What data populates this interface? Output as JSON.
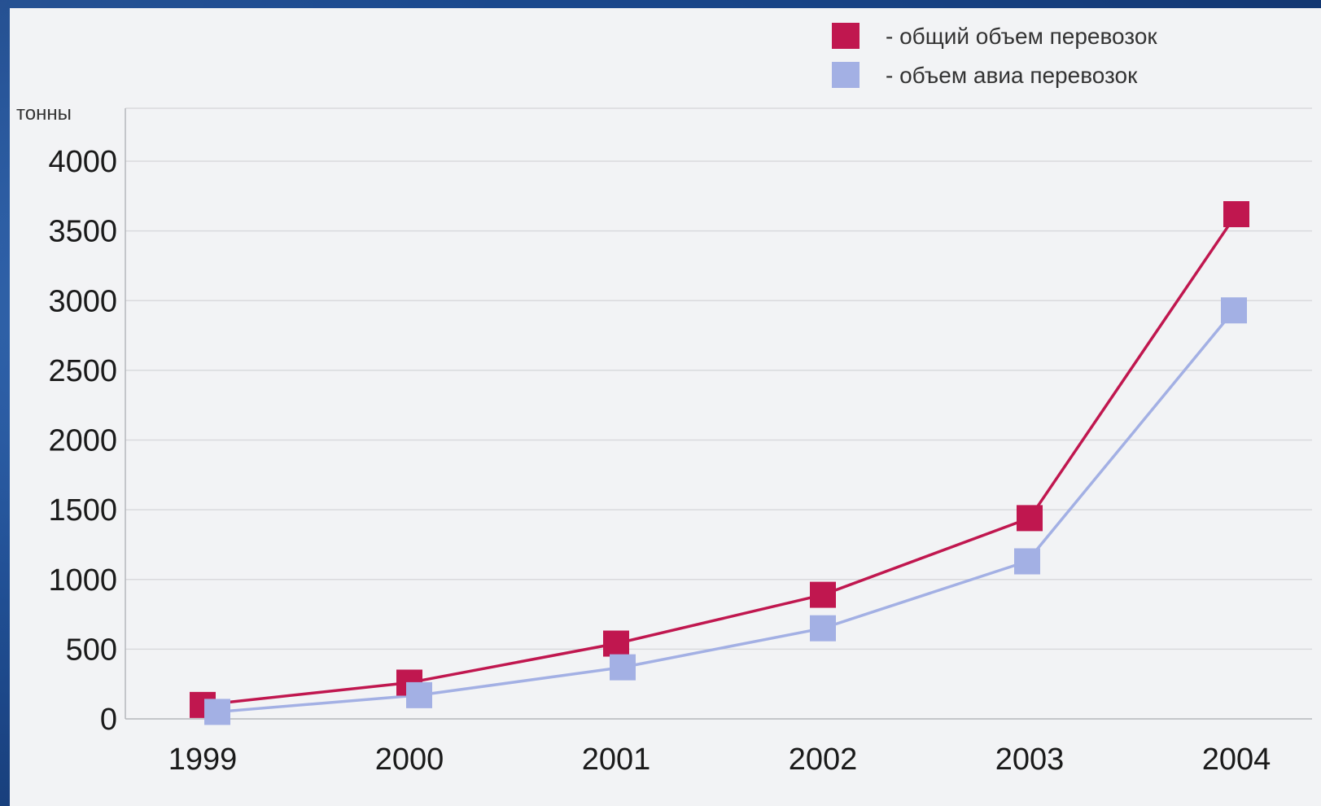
{
  "chart_data": {
    "type": "line",
    "title": "",
    "xlabel": "",
    "ylabel": "тонны",
    "categories": [
      "1999",
      "2000",
      "2001",
      "2002",
      "2003",
      "2004"
    ],
    "ylim": [
      0,
      4000
    ],
    "y_ticks": [
      0,
      500,
      1000,
      1500,
      2000,
      2500,
      3000,
      3500,
      4000
    ],
    "grid": true,
    "legend_position": "top-right",
    "series": [
      {
        "name": "общий объем перевозок",
        "legend_label": "-  общий объем перевозок",
        "color": "#c0174f",
        "values": [
          100,
          260,
          540,
          890,
          1440,
          3620
        ]
      },
      {
        "name": "объем авиа перевозок",
        "legend_label": "-  объем авиа перевозок",
        "color": "#a3b0e4",
        "values": [
          50,
          170,
          370,
          650,
          1130,
          2930
        ]
      }
    ]
  },
  "colors": {
    "panel_background": "#f2f3f5",
    "slide_background": "#1d4a8a",
    "grid": "#d9dadd",
    "axis": "#b5b7bb"
  }
}
